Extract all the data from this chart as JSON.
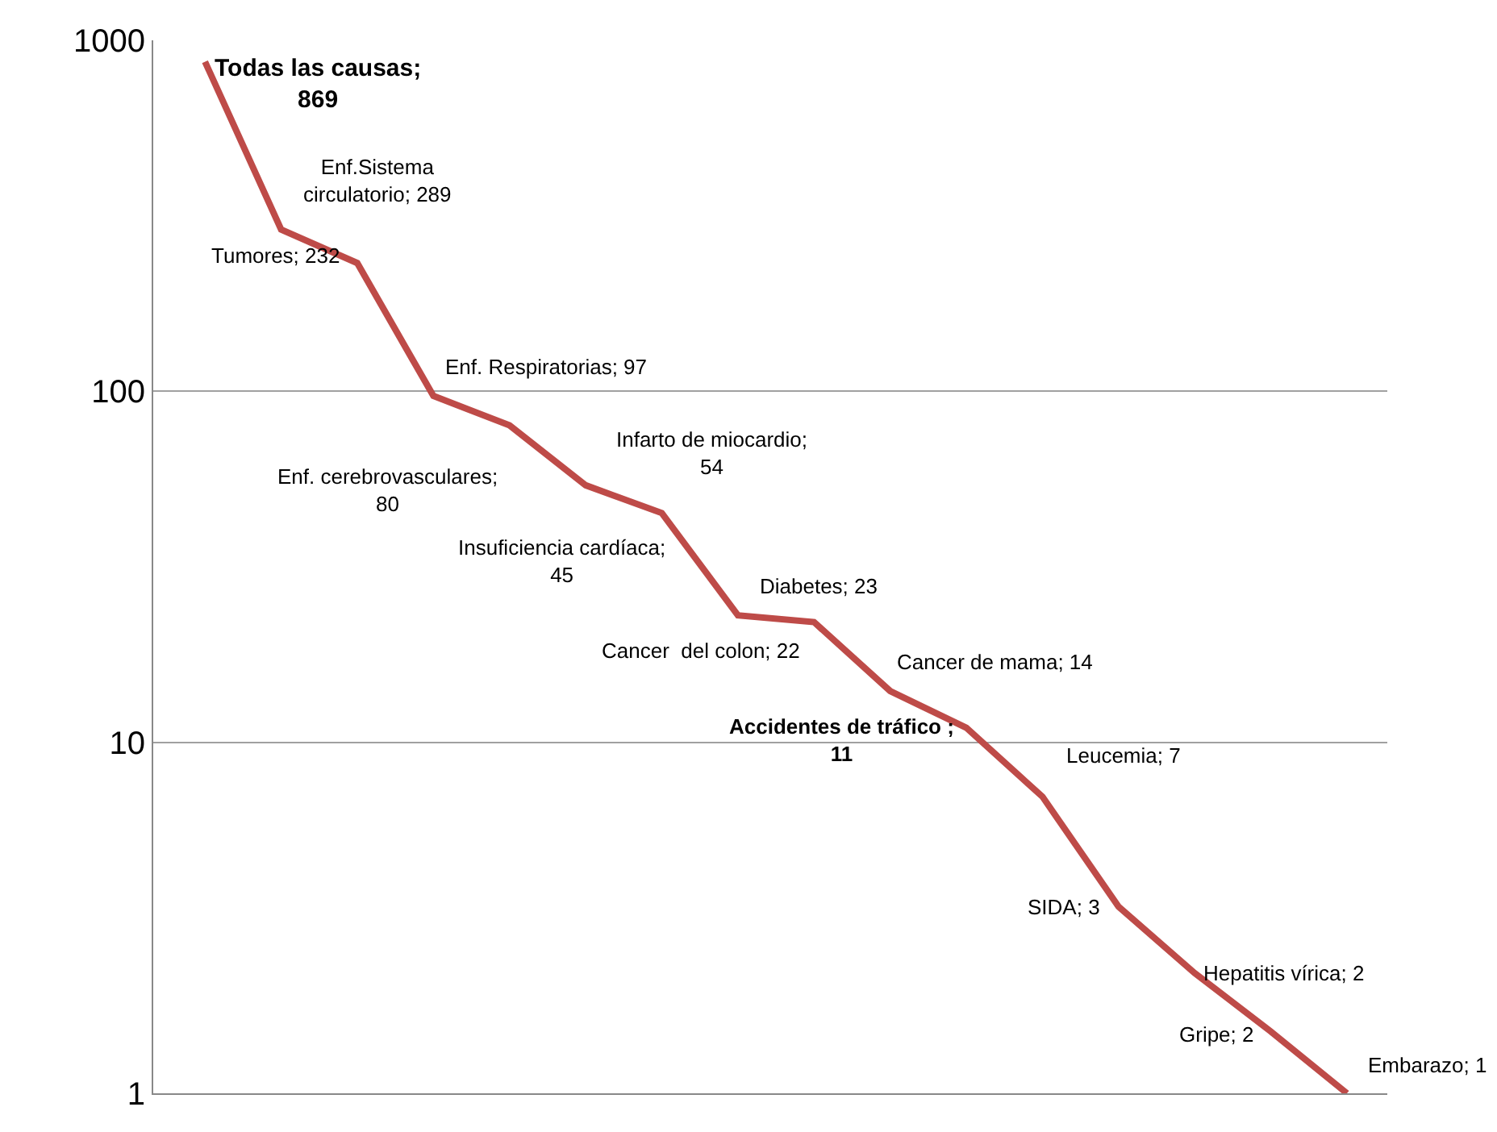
{
  "chart_data": {
    "type": "line",
    "categories": [
      null,
      null,
      null,
      null,
      null,
      null,
      null,
      null,
      null,
      null,
      null,
      null,
      null,
      null,
      null,
      null
    ],
    "series": [
      {
        "color": "#be4b48",
        "values": [
          869,
          289,
          232,
          97,
          80,
          54,
          45,
          23,
          22,
          14,
          11,
          7,
          3.4,
          2.2,
          1.5,
          1
        ],
        "value_labels": [
          "Todas las causas; 869",
          "Enf.Sistema circulatorio; 289",
          "Tumores; 232",
          "Enf. Respiratorias; 97",
          "Enf. cerebrovasculares; 80",
          "Infarto de miocardio; 54",
          "Insuficiencia cardíaca; 45",
          "Diabetes; 23",
          "Cancer  del colon; 22",
          "Cancer de mama; 14",
          "Accidentes de tráfico ; 11",
          "Leucemia; 7",
          "SIDA; 3",
          "Hepatitis vírica; 2",
          "Gripe; 2",
          "Embarazo; 1"
        ]
      }
    ],
    "log": "y",
    "ylim": [
      1,
      1000
    ],
    "yticks": [
      1,
      10,
      100,
      1000
    ],
    "grid": "y"
  }
}
